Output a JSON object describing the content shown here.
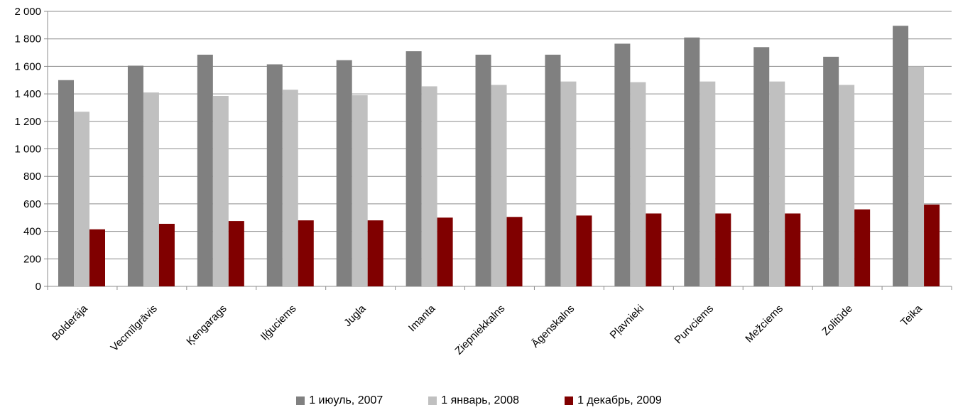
{
  "chart_data": {
    "type": "bar",
    "categories": [
      "Bolderāja",
      "Vecmīlgrāvis",
      "Ķengarags",
      "Iļģuciems",
      "Jugla",
      "Imanta",
      "Ziepniekkalns",
      "Āgenskalns",
      "Pļavnieki",
      "Purvciems",
      "Mežciems",
      "Zolitūde",
      "Teika"
    ],
    "series": [
      {
        "name": "1 июуль, 2007",
        "color": "#808080",
        "values": [
          1500,
          1605,
          1685,
          1615,
          1645,
          1710,
          1685,
          1685,
          1765,
          1810,
          1740,
          1670,
          1895
        ]
      },
      {
        "name": "1 январь, 2008",
        "color": "#c0c0c0",
        "values": [
          1270,
          1410,
          1385,
          1430,
          1390,
          1455,
          1465,
          1490,
          1485,
          1490,
          1490,
          1465,
          1600
        ]
      },
      {
        "name": "1 декабрь, 2009",
        "color": "#800000",
        "values": [
          415,
          455,
          475,
          480,
          480,
          500,
          505,
          515,
          530,
          530,
          530,
          560,
          595
        ]
      }
    ],
    "y_ticks": [
      "0",
      "200",
      "400",
      "600",
      "800",
      "1 000",
      "1 200",
      "1 400",
      "1 600",
      "1 800",
      "2 000"
    ],
    "ylim": [
      0,
      2000
    ],
    "grid": true,
    "legend_position": "bottom"
  }
}
